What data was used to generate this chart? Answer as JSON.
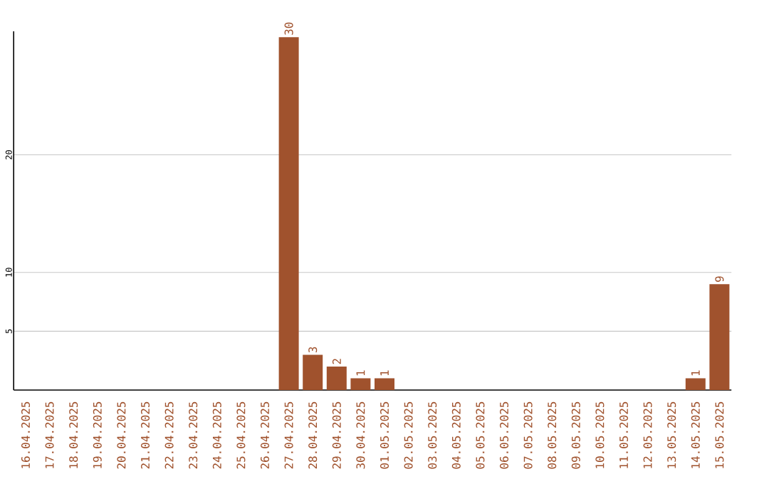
{
  "chart_data": {
    "type": "bar",
    "categories": [
      "16.04.2025",
      "17.04.2025",
      "18.04.2025",
      "19.04.2025",
      "20.04.2025",
      "21.04.2025",
      "22.04.2025",
      "23.04.2025",
      "24.04.2025",
      "25.04.2025",
      "26.04.2025",
      "27.04.2025",
      "28.04.2025",
      "29.04.2025",
      "30.04.2025",
      "01.05.2025",
      "02.05.2025",
      "03.05.2025",
      "04.05.2025",
      "05.05.2025",
      "06.05.2025",
      "07.05.2025",
      "08.05.2025",
      "09.05.2025",
      "10.05.2025",
      "11.05.2025",
      "12.05.2025",
      "13.05.2025",
      "14.05.2025",
      "15.05.2025"
    ],
    "values": [
      0,
      0,
      0,
      0,
      0,
      0,
      0,
      0,
      0,
      0,
      0,
      30,
      3,
      2,
      1,
      1,
      0,
      0,
      0,
      0,
      0,
      0,
      0,
      0,
      0,
      0,
      0,
      0,
      1,
      9
    ],
    "value_labels": [
      null,
      null,
      null,
      null,
      null,
      null,
      null,
      null,
      null,
      null,
      null,
      "30",
      "3",
      "2",
      "1",
      "1",
      null,
      null,
      null,
      null,
      null,
      null,
      null,
      null,
      null,
      null,
      null,
      null,
      "1",
      "9"
    ],
    "color": "#a0522d",
    "ylim": [
      0,
      30.5
    ],
    "yticks": [
      5,
      10,
      20
    ],
    "grid": "y"
  }
}
